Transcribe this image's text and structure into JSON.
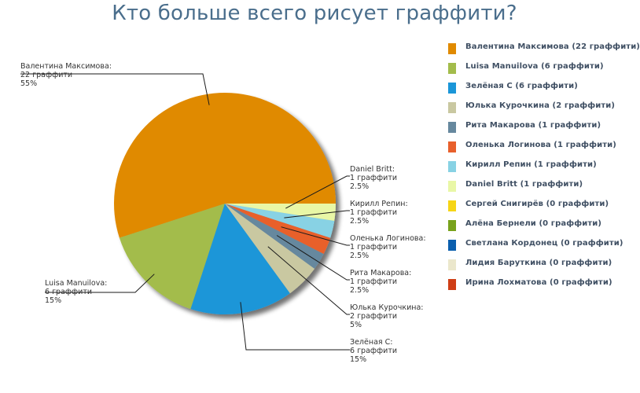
{
  "chart_data": {
    "type": "pie",
    "title": "Кто больше всего рисует граффити?",
    "unit_label": "граффити",
    "slices": [
      {
        "name": "Валентина Максимова",
        "value": 22,
        "percent": "55%",
        "color": "#e08a00",
        "legend": "Валентина Максимова (22 граффити)",
        "label": [
          "Валентина Максимова:",
          "22 граффити",
          "55%"
        ]
      },
      {
        "name": "Luisa Manuilova",
        "value": 6,
        "percent": "15%",
        "color": "#a3bc4b",
        "legend": "Luisa Manuilova (6 граффити)",
        "label": [
          "Luisa Manuilova:",
          "6 граффити",
          "15%"
        ]
      },
      {
        "name": "Зелёная С",
        "value": 6,
        "percent": "15%",
        "color": "#1b96d8",
        "legend": "Зелёная С (6 граффити)",
        "label": [
          "Зелёная С:",
          "6 граффити",
          "15%"
        ]
      },
      {
        "name": "Юлька Курочкина",
        "value": 2,
        "percent": "5%",
        "color": "#c9c8a1",
        "legend": "Юлька Курочкина (2 граффити)",
        "label": [
          "Юлька Курочкина:",
          "2 граффити",
          "5%"
        ]
      },
      {
        "name": "Рита Макарова",
        "value": 1,
        "percent": "2.5%",
        "color": "#66889e",
        "legend": "Рита Макарова (1 граффити)",
        "label": [
          "Рита Макарова:",
          "1 граффити",
          "2.5%"
        ]
      },
      {
        "name": "Оленька Логинова",
        "value": 1,
        "percent": "2.5%",
        "color": "#e8602c",
        "legend": "Оленька Логинова (1 граффити)",
        "label": [
          "Оленька Логинова:",
          "1 граффити",
          "2.5%"
        ]
      },
      {
        "name": "Кирилл Репин",
        "value": 1,
        "percent": "2.5%",
        "color": "#88d2e4",
        "legend": "Кирилл Репин (1 граффити)",
        "label": [
          "Кирилл Репин:",
          "1 граффити",
          "2.5%"
        ]
      },
      {
        "name": "Daniel Britt",
        "value": 1,
        "percent": "2.5%",
        "color": "#e9f7a6",
        "legend": "Daniel Britt (1 граффити)",
        "label": [
          "Daniel Britt:",
          "1 граффити",
          "2.5%"
        ]
      },
      {
        "name": "Сергей Снигирёв",
        "value": 0,
        "color": "#f6d516",
        "legend": "Сергей Снигирёв (0 граффити)"
      },
      {
        "name": "Алёна Бернели",
        "value": 0,
        "color": "#78a21c",
        "legend": "Алёна Бернели (0 граффити)"
      },
      {
        "name": "Светлана Кордонец",
        "value": 0,
        "color": "#0b5fae",
        "legend": "Светлана Кордонец (0 граффити)"
      },
      {
        "name": "Лидия Барyткина",
        "value": 0,
        "color": "#ebe7cc",
        "legend": "Лидия Барyткина (0 граффити)"
      },
      {
        "name": "Ирина Лохматова",
        "value": 0,
        "color": "#cf3e16",
        "legend": "Ирина Лохматова (0 граффити)"
      }
    ],
    "legend_position": "right",
    "start_angle_deg": 0,
    "direction": "counterclockwise-from-right",
    "has_shadow": true
  }
}
